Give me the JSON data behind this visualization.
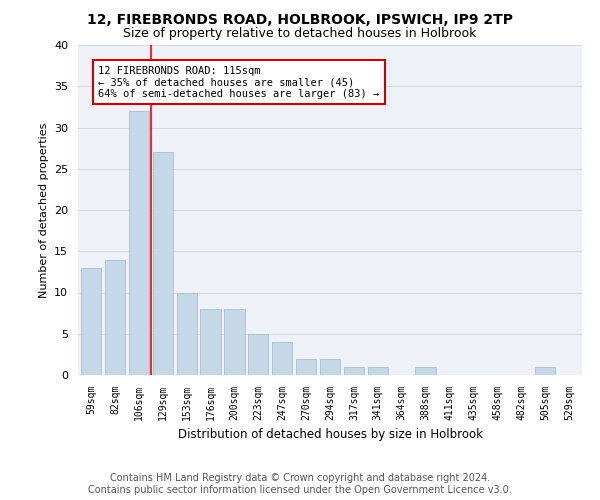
{
  "title_line1": "12, FIREBRONDS ROAD, HOLBROOK, IPSWICH, IP9 2TP",
  "title_line2": "Size of property relative to detached houses in Holbrook",
  "xlabel": "Distribution of detached houses by size in Holbrook",
  "ylabel": "Number of detached properties",
  "categories": [
    "59sqm",
    "82sqm",
    "106sqm",
    "129sqm",
    "153sqm",
    "176sqm",
    "200sqm",
    "223sqm",
    "247sqm",
    "270sqm",
    "294sqm",
    "317sqm",
    "341sqm",
    "364sqm",
    "388sqm",
    "411sqm",
    "435sqm",
    "458sqm",
    "482sqm",
    "505sqm",
    "529sqm"
  ],
  "values": [
    13,
    14,
    32,
    27,
    10,
    8,
    8,
    5,
    4,
    2,
    2,
    1,
    1,
    0,
    1,
    0,
    0,
    0,
    0,
    1,
    0
  ],
  "bar_color": "#c5d8e8",
  "bar_edge_color": "#a8bfce",
  "red_line_x": 2.5,
  "annotation_text": "12 FIREBRONDS ROAD: 115sqm\n← 35% of detached houses are smaller (45)\n64% of semi-detached houses are larger (83) →",
  "annotation_box_color": "#ffffff",
  "annotation_box_edge_color": "#cc0000",
  "grid_color": "#d0dae8",
  "background_color": "#eef2f8",
  "ylim": [
    0,
    40
  ],
  "yticks": [
    0,
    5,
    10,
    15,
    20,
    25,
    30,
    35,
    40
  ],
  "footer_line1": "Contains HM Land Registry data © Crown copyright and database right 2024.",
  "footer_line2": "Contains public sector information licensed under the Open Government Licence v3.0.",
  "title_fontsize": 10,
  "subtitle_fontsize": 9,
  "footer_fontsize": 7
}
